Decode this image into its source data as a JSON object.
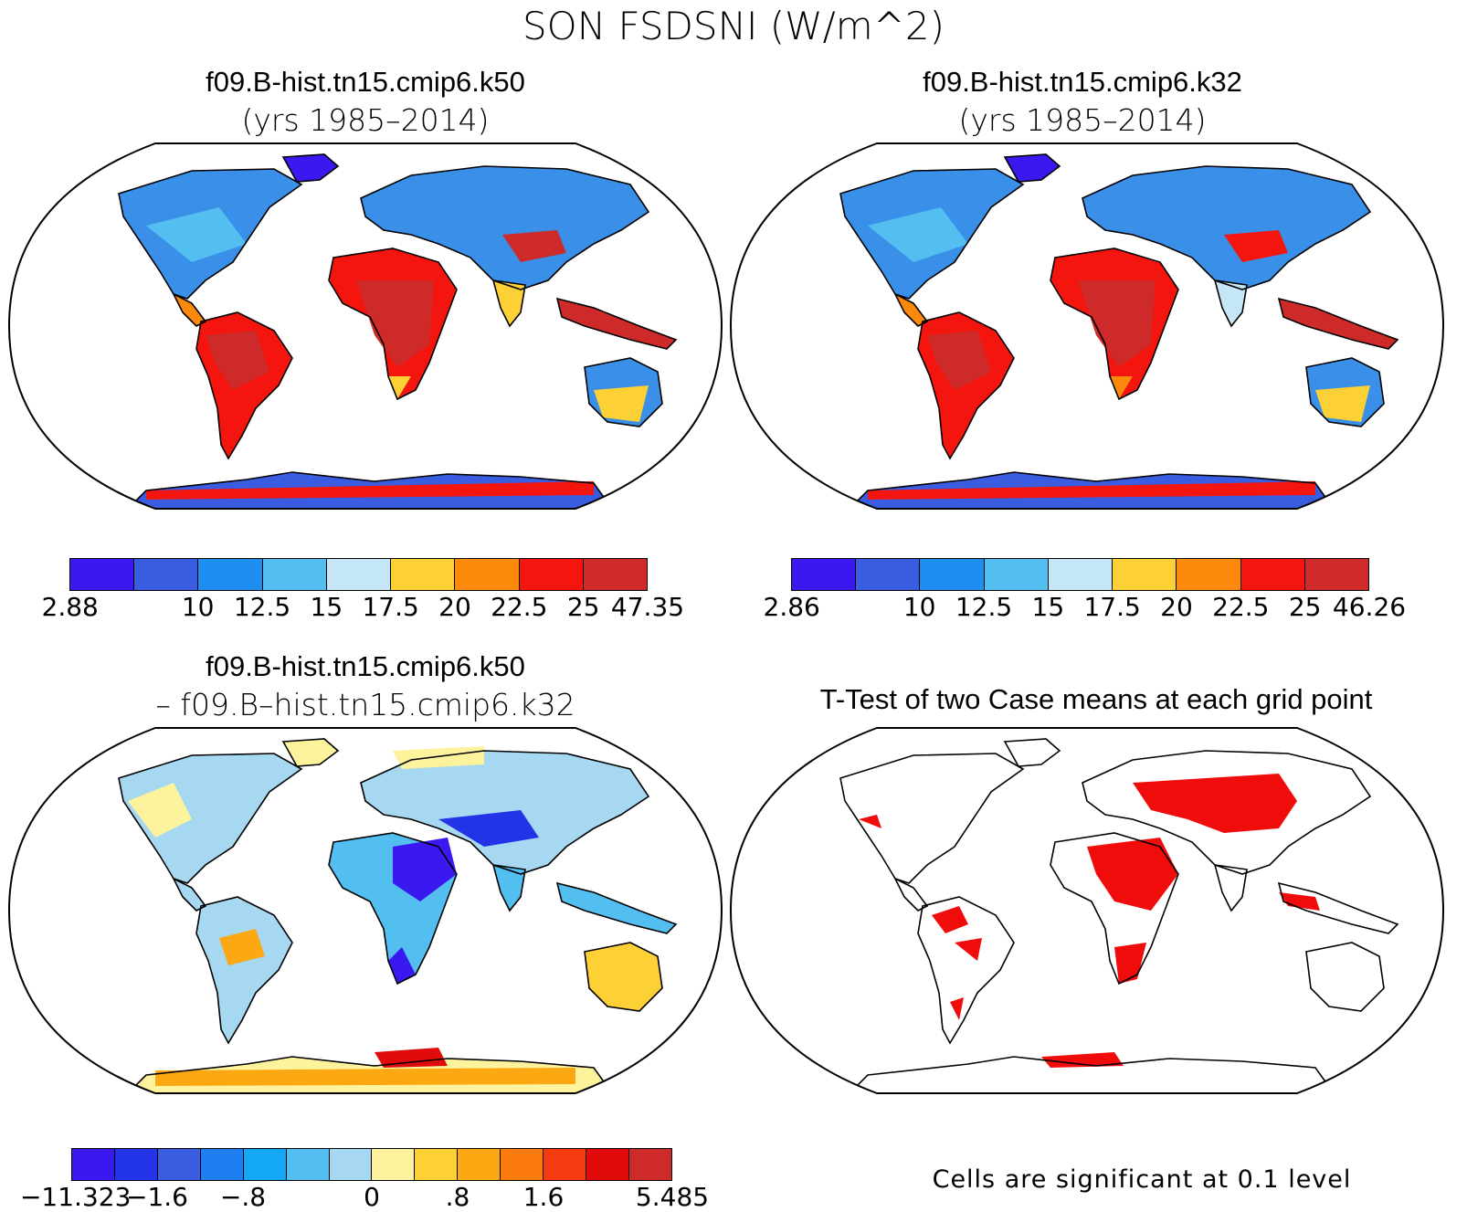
{
  "figure": {
    "title": "SON FSDSNI (W/m^2)"
  },
  "panels": [
    {
      "id": "top-left",
      "title": "f09.B-hist.tn15.cmip6.k50",
      "subtitle": "(yrs 1985–2014)",
      "colorbar": {
        "colors": [
          "#3a19f0",
          "#3a5ce0",
          "#1e8ef0",
          "#52bff0",
          "#c5e6f7",
          "#fdd035",
          "#fb8a0c",
          "#f5150f",
          "#cf2a2a"
        ],
        "labels": [
          "2.88",
          "10",
          "12.5",
          "15",
          "17.5",
          "20",
          "22.5",
          "25",
          "47.35"
        ]
      }
    },
    {
      "id": "top-right",
      "title": "f09.B-hist.tn15.cmip6.k32",
      "subtitle": "(yrs 1985–2014)",
      "colorbar": {
        "colors": [
          "#3a19f0",
          "#3a5ce0",
          "#1e8ef0",
          "#52bff0",
          "#c5e6f7",
          "#fdd035",
          "#fb8a0c",
          "#f5150f",
          "#cf2a2a"
        ],
        "labels": [
          "2.86",
          "10",
          "12.5",
          "15",
          "17.5",
          "20",
          "22.5",
          "25",
          "46.26"
        ]
      }
    },
    {
      "id": "bottom-left",
      "title": "f09.B-hist.tn15.cmip6.k50",
      "subtitle": "– f09.B–hist.tn15.cmip6.k32",
      "colorbar": {
        "colors": [
          "#3a19f0",
          "#2333e8",
          "#3a5ce0",
          "#1e7ff0",
          "#12a8f5",
          "#52bff0",
          "#a6d8f2",
          "#fdf39c",
          "#fdd035",
          "#fca813",
          "#fb7a0c",
          "#f53a0f",
          "#e00c0c",
          "#cf2a2a"
        ],
        "labels": [
          "−11.323",
          "−1.6",
          "−.8",
          "0",
          ".8",
          "1.6",
          "5.485"
        ]
      }
    },
    {
      "id": "bottom-right",
      "title": "T-Test of two Case means at each grid point",
      "footnote": "Cells are significant at 0.1 level"
    }
  ]
}
